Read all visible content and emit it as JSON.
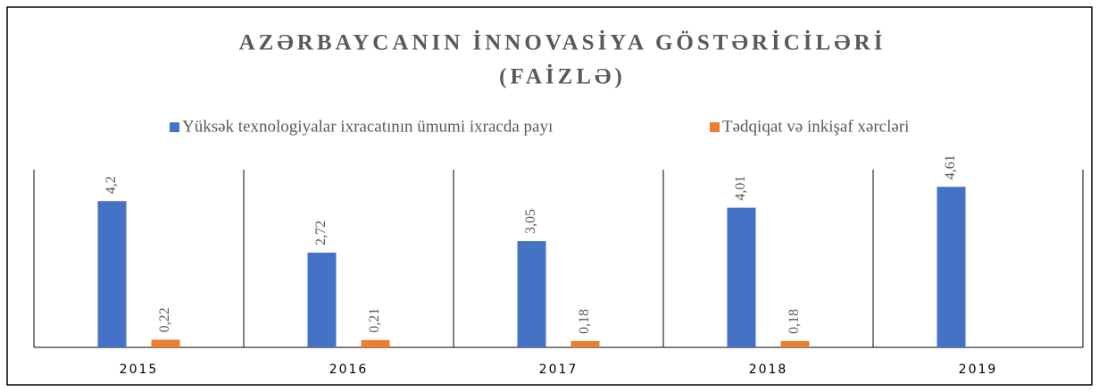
{
  "chart_data": {
    "type": "bar",
    "title": [
      "AZƏRBAYCANIN İNNOVASİYA GÖSTƏRİCİLƏRİ",
      "(FAİZLƏ)"
    ],
    "categories": [
      "2015",
      "2016",
      "2017",
      "2018",
      "2019"
    ],
    "series": [
      {
        "name": "Yüksək texnologiyalar ixracatının ümumi ixracda payı",
        "color": "#4472c4",
        "values": [
          4.2,
          2.72,
          3.05,
          4.01,
          4.61
        ],
        "value_labels": [
          "4,2",
          "2,72",
          "3,05",
          "4,01",
          "4,61"
        ]
      },
      {
        "name": "Tədqiqat və inkişaf xərcləri",
        "color": "#ed7d31",
        "values": [
          0.22,
          0.21,
          0.18,
          0.18,
          null
        ],
        "value_labels": [
          "0,22",
          "0,21",
          "0,18",
          "0,18",
          null
        ]
      }
    ],
    "ylim": [
      0,
      5
    ],
    "legend": "top"
  }
}
